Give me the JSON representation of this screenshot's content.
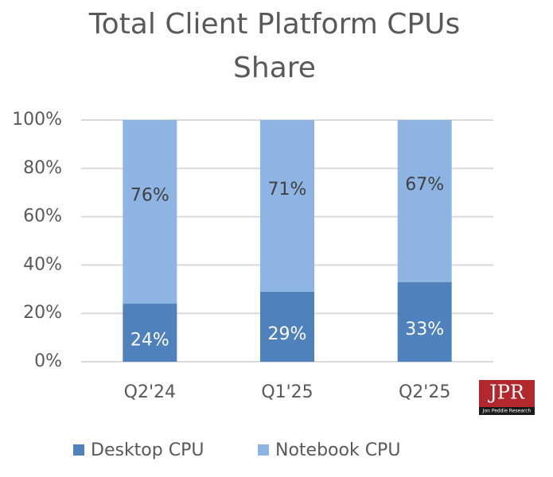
{
  "chart_data": {
    "type": "stacked_bar",
    "title": "Total Client Platform CPUs",
    "subtitle": "Share",
    "categories": [
      "Q2'24",
      "Q1'25",
      "Q2'25"
    ],
    "series": [
      {
        "name": "Desktop CPU",
        "color": "#4f81bd",
        "values": [
          24,
          29,
          33
        ],
        "value_labels": [
          "24%",
          "29%",
          "33%"
        ]
      },
      {
        "name": "Notebook CPU",
        "color": "#8eb4e3",
        "values": [
          76,
          71,
          67
        ],
        "value_labels": [
          "76%",
          "71%",
          "67%"
        ]
      }
    ],
    "ylim": [
      0,
      100
    ],
    "yticks": [
      {
        "value": 0,
        "label": "0%"
      },
      {
        "value": 20,
        "label": "20%"
      },
      {
        "value": 40,
        "label": "40%"
      },
      {
        "value": 60,
        "label": "60%"
      },
      {
        "value": 80,
        "label": "80%"
      },
      {
        "value": 100,
        "label": "100%"
      }
    ],
    "grid": true,
    "legend": "bottom"
  },
  "logo": {
    "text": "JPR",
    "subtext": "Jon Peddie Research"
  }
}
